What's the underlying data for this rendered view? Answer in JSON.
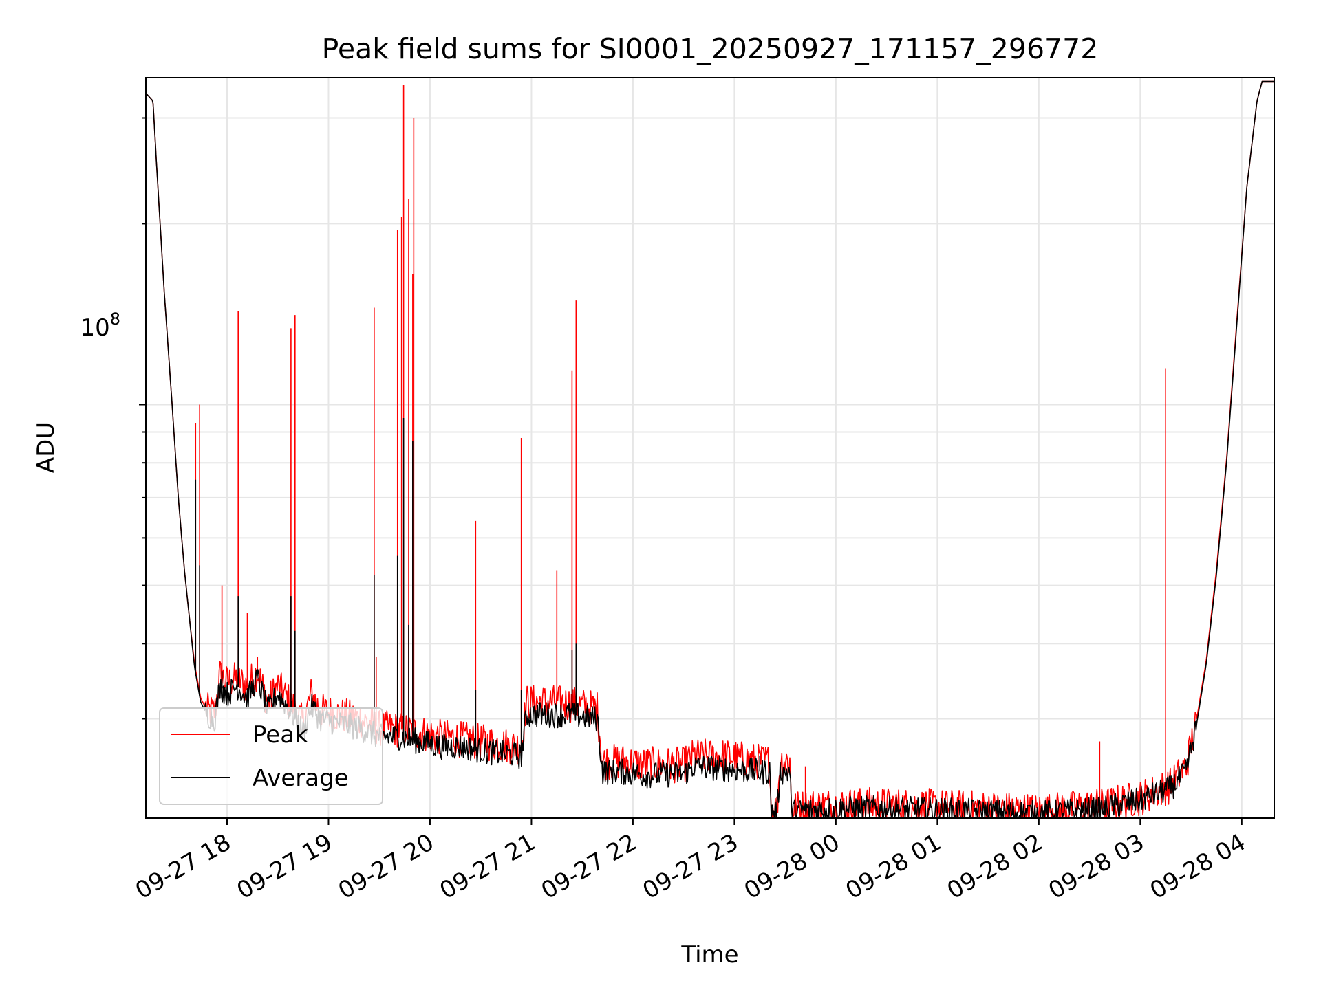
{
  "chart_data": {
    "type": "line",
    "title": "Peak field sums for SI0001_20250927_171157_296772",
    "xlabel": "Time",
    "ylabel": "ADU",
    "yscale": "log",
    "x_ticks": [
      "09-27 18",
      "09-27 19",
      "09-27 20",
      "09-27 21",
      "09-27 22",
      "09-27 23",
      "09-28 00",
      "09-28 01",
      "09-28 02",
      "09-28 03",
      "09-28 04"
    ],
    "x_tick_hours": [
      18,
      19,
      20,
      21,
      22,
      23,
      24,
      25,
      26,
      27,
      28
    ],
    "x_range_hours": [
      17.2,
      28.32
    ],
    "y_tick_label": {
      "base": "10",
      "exponent": "8",
      "value": 100000000
    },
    "y_range": [
      20500000,
      350000000
    ],
    "grid": true,
    "legend": {
      "placement": "lower-left",
      "entries": [
        "Peak",
        "Average"
      ]
    },
    "colors": {
      "Peak": "#ff0000",
      "Average": "#000000"
    },
    "series": [
      {
        "name": "Average",
        "baseline": [
          [
            17.2,
            330000000.0
          ],
          [
            17.27,
            320000000.0
          ],
          [
            17.3,
            260000000.0
          ],
          [
            17.38,
            155000000.0
          ],
          [
            17.45,
            105000000.0
          ],
          [
            17.52,
            70000000.0
          ],
          [
            17.58,
            53000000.0
          ],
          [
            17.63,
            44000000.0
          ],
          [
            17.68,
            36500000.0
          ],
          [
            17.74,
            32000000.0
          ],
          [
            17.8,
            30500000.0
          ],
          [
            17.88,
            30000000.0
          ],
          [
            17.93,
            34000000.0
          ],
          [
            18.0,
            33000000.0
          ],
          [
            18.1,
            34000000.0
          ],
          [
            18.2,
            32500000.0
          ],
          [
            18.3,
            35000000.0
          ],
          [
            18.4,
            31000000.0
          ],
          [
            18.5,
            33000000.0
          ],
          [
            18.62,
            31000000.0
          ],
          [
            18.75,
            28500000.0
          ],
          [
            18.83,
            31500000.0
          ],
          [
            18.92,
            30000000.0
          ],
          [
            19.1,
            29500000.0
          ],
          [
            19.3,
            29000000.0
          ],
          [
            19.5,
            28000000.0
          ],
          [
            19.7,
            28000000.0
          ],
          [
            19.9,
            27500000.0
          ],
          [
            20.1,
            27000000.0
          ],
          [
            20.3,
            27000000.0
          ],
          [
            20.5,
            26600000.0
          ],
          [
            20.7,
            26300000.0
          ],
          [
            20.9,
            26000000.0
          ],
          [
            20.95,
            30500000.0
          ],
          [
            21.2,
            30500000.0
          ],
          [
            21.4,
            30500000.0
          ],
          [
            21.65,
            30000000.0
          ],
          [
            21.7,
            24500000.0
          ],
          [
            21.9,
            24500000.0
          ],
          [
            22.1,
            24200000.0
          ],
          [
            22.5,
            24300000.0
          ],
          [
            22.6,
            25000000.0
          ],
          [
            22.9,
            24800000.0
          ],
          [
            23.25,
            24500000.0
          ],
          [
            23.35,
            24500000.0
          ],
          [
            23.36,
            21000000.0
          ],
          [
            23.42,
            21000000.0
          ],
          [
            23.45,
            24500000.0
          ],
          [
            23.55,
            24500000.0
          ],
          [
            23.56,
            21000000.0
          ],
          [
            23.8,
            21200000.0
          ],
          [
            24.3,
            21300000.0
          ],
          [
            24.8,
            21200000.0
          ],
          [
            25.5,
            21000000.0
          ],
          [
            26.0,
            20900000.0
          ],
          [
            26.6,
            21200000.0
          ],
          [
            27.0,
            22000000.0
          ],
          [
            27.3,
            23000000.0
          ],
          [
            27.45,
            24500000.0
          ],
          [
            27.55,
            29000000.0
          ],
          [
            27.65,
            37000000.0
          ],
          [
            27.75,
            52000000.0
          ],
          [
            27.85,
            80000000.0
          ],
          [
            27.95,
            135000000.0
          ],
          [
            28.05,
            230000000.0
          ],
          [
            28.15,
            320000000.0
          ],
          [
            28.2,
            345000000.0
          ],
          [
            28.32,
            345000000.0
          ]
        ],
        "spikes": [
          [
            17.69,
            75000000.0
          ],
          [
            17.73,
            54000000.0
          ],
          [
            17.95,
            36000000.0
          ],
          [
            18.11,
            48000000.0
          ],
          [
            18.63,
            48000000.0
          ],
          [
            18.67,
            42000000.0
          ],
          [
            19.45,
            52000000.0
          ],
          [
            19.68,
            56000000.0
          ],
          [
            19.74,
            95000000.0
          ],
          [
            19.79,
            43000000.0
          ],
          [
            19.83,
            87000000.0
          ],
          [
            20.45,
            33500000.0
          ],
          [
            20.9,
            33500000.0
          ],
          [
            21.4,
            39000000.0
          ],
          [
            21.44,
            40000000.0
          ],
          [
            23.25,
            26000000.0
          ],
          [
            23.7,
            21500000.0
          ],
          [
            26.6,
            22000000.0
          ],
          [
            27.25,
            23000000.0
          ]
        ]
      },
      {
        "name": "Peak",
        "baseline": [
          [
            17.2,
            330000000.0
          ],
          [
            17.27,
            320000000.0
          ],
          [
            17.3,
            260000000.0
          ],
          [
            17.38,
            155000000.0
          ],
          [
            17.45,
            105000000.0
          ],
          [
            17.52,
            70000000.0
          ],
          [
            17.58,
            53000000.0
          ],
          [
            17.63,
            44000000.0
          ],
          [
            17.68,
            37000000.0
          ],
          [
            17.74,
            32500000.0
          ],
          [
            17.8,
            31000000.0
          ],
          [
            17.88,
            30800000.0
          ],
          [
            17.93,
            35500000.0
          ],
          [
            18.0,
            34500000.0
          ],
          [
            18.1,
            35000000.0
          ],
          [
            18.2,
            34000000.0
          ],
          [
            18.3,
            36000000.0
          ],
          [
            18.4,
            32000000.0
          ],
          [
            18.5,
            34000000.0
          ],
          [
            18.62,
            32000000.0
          ],
          [
            18.75,
            29500000.0
          ],
          [
            18.83,
            33000000.0
          ],
          [
            18.92,
            31000000.0
          ],
          [
            19.1,
            30500000.0
          ],
          [
            19.3,
            30000000.0
          ],
          [
            19.5,
            29000000.0
          ],
          [
            19.7,
            28800000.0
          ],
          [
            19.9,
            28500000.0
          ],
          [
            20.1,
            28000000.0
          ],
          [
            20.3,
            27800000.0
          ],
          [
            20.5,
            27500000.0
          ],
          [
            20.7,
            27200000.0
          ],
          [
            20.9,
            27000000.0
          ],
          [
            20.95,
            32000000.0
          ],
          [
            21.2,
            32000000.0
          ],
          [
            21.4,
            31800000.0
          ],
          [
            21.65,
            31200000.0
          ],
          [
            21.7,
            25500000.0
          ],
          [
            21.9,
            25500000.0
          ],
          [
            22.1,
            25200000.0
          ],
          [
            22.5,
            25200000.0
          ],
          [
            22.6,
            26000000.0
          ],
          [
            22.9,
            26000000.0
          ],
          [
            23.25,
            25500000.0
          ],
          [
            23.35,
            25500000.0
          ],
          [
            23.36,
            21200000.0
          ],
          [
            23.42,
            21200000.0
          ],
          [
            23.45,
            25500000.0
          ],
          [
            23.55,
            25500000.0
          ],
          [
            23.56,
            21300000.0
          ],
          [
            23.8,
            21500000.0
          ],
          [
            24.3,
            21600000.0
          ],
          [
            24.8,
            21500000.0
          ],
          [
            25.5,
            21300000.0
          ],
          [
            26.0,
            21100000.0
          ],
          [
            26.6,
            21500000.0
          ],
          [
            27.0,
            22200000.0
          ],
          [
            27.3,
            23300000.0
          ],
          [
            27.45,
            25000000.0
          ],
          [
            27.55,
            29500000.0
          ],
          [
            27.65,
            37500000.0
          ],
          [
            27.75,
            53000000.0
          ],
          [
            27.85,
            81000000.0
          ],
          [
            27.95,
            137000000.0
          ],
          [
            28.05,
            230000000.0
          ],
          [
            28.15,
            320000000.0
          ],
          [
            28.2,
            345000000.0
          ],
          [
            28.32,
            345000000.0
          ]
        ],
        "spikes": [
          [
            17.69,
            93000000.0
          ],
          [
            17.73,
            100000000.0
          ],
          [
            17.95,
            50000000.0
          ],
          [
            18.11,
            143000000.0
          ],
          [
            18.2,
            45000000.0
          ],
          [
            18.3,
            38000000.0
          ],
          [
            18.63,
            134000000.0
          ],
          [
            18.67,
            141000000.0
          ],
          [
            19.45,
            145000000.0
          ],
          [
            19.47,
            38000000.0
          ],
          [
            19.68,
            195000000.0
          ],
          [
            19.72,
            205000000.0
          ],
          [
            19.74,
            340000000.0
          ],
          [
            19.79,
            220000000.0
          ],
          [
            19.83,
            165000000.0
          ],
          [
            19.84,
            300000000.0
          ],
          [
            20.45,
            64000000.0
          ],
          [
            20.9,
            88000000.0
          ],
          [
            21.25,
            53000000.0
          ],
          [
            21.4,
            114000000.0
          ],
          [
            21.44,
            149000000.0
          ],
          [
            23.7,
            25000000.0
          ],
          [
            26.6,
            27500000.0
          ],
          [
            27.25,
            115000000.0
          ]
        ]
      }
    ]
  }
}
